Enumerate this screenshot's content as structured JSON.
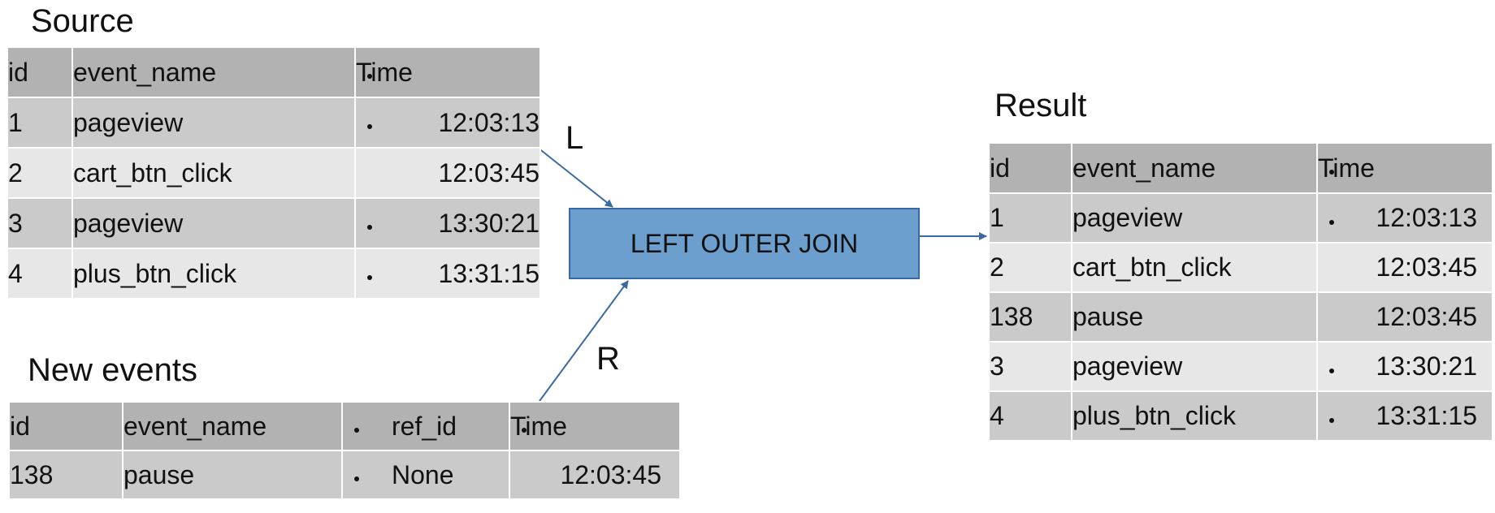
{
  "source": {
    "title": "Source",
    "headers": [
      "id",
      "event_name",
      "Time"
    ],
    "rows": [
      {
        "id": "1",
        "event_name": "pageview",
        "time": "12:03:13"
      },
      {
        "id": "2",
        "event_name": "cart_btn_click",
        "time": "12:03:45"
      },
      {
        "id": "3",
        "event_name": "pageview",
        "time": "13:30:21"
      },
      {
        "id": "4",
        "event_name": "plus_btn_click",
        "time": "13:31:15"
      }
    ]
  },
  "new_events": {
    "title": "New events",
    "headers": [
      "id",
      "event_name",
      "ref_id",
      "Time"
    ],
    "rows": [
      {
        "id": "138",
        "event_name": "pause",
        "ref_id": "None",
        "time": "12:03:45"
      }
    ]
  },
  "join": {
    "label": "LEFT OUTER JOIN",
    "left_label": "L",
    "right_label": "R"
  },
  "result": {
    "title": "Result",
    "headers": [
      "id",
      "event_name",
      "Time"
    ],
    "rows": [
      {
        "id": "1",
        "event_name": "pageview",
        "time": "12:03:13"
      },
      {
        "id": "2",
        "event_name": "cart_btn_click",
        "time": "12:03:45"
      },
      {
        "id": "138",
        "event_name": "pause",
        "time": "12:03:45"
      },
      {
        "id": "3",
        "event_name": "pageview",
        "time": "13:30:21"
      },
      {
        "id": "4",
        "event_name": "plus_btn_click",
        "time": "13:31:15"
      }
    ]
  },
  "colors": {
    "header_fill": "#b2b2b2",
    "row_dark": "#cacaca",
    "row_light": "#e7e7e7",
    "join_fill": "#6d9fce",
    "arrow": "#3a6aa3"
  }
}
